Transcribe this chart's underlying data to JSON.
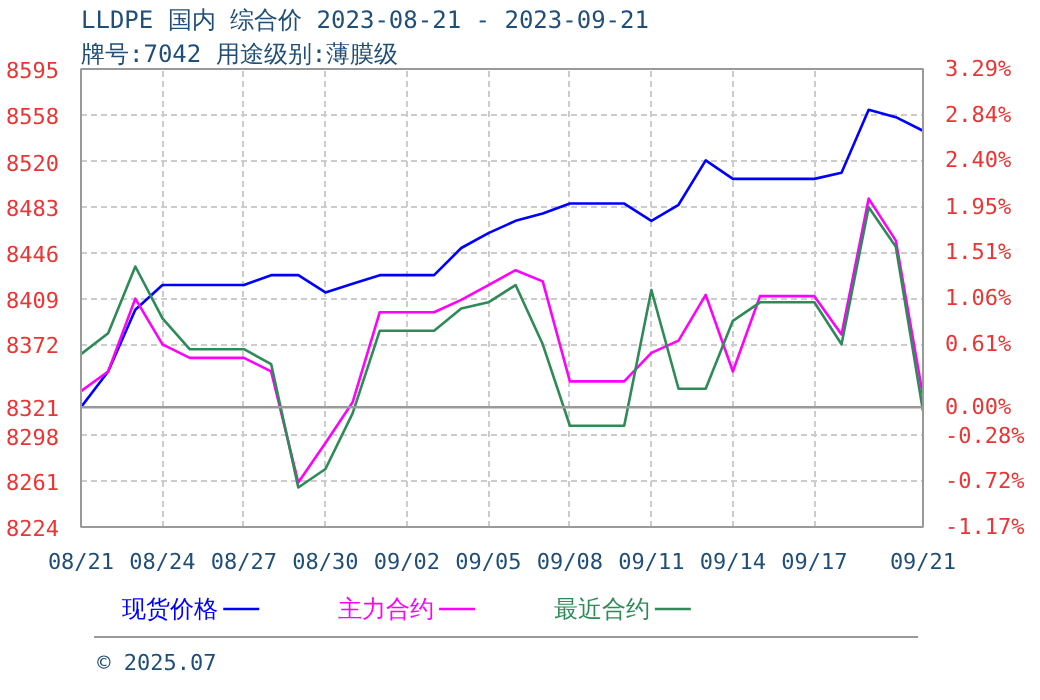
{
  "chart_data": {
    "type": "line",
    "title": "LLDPE 国内 综合价 2023-08-21 - 2023-09-21",
    "subtitle": "牌号:7042 用途级别:薄膜级",
    "x": [
      "2023-08-21",
      "2023-08-22",
      "2023-08-23",
      "2023-08-24",
      "2023-08-25",
      "2023-08-26",
      "2023-08-27",
      "2023-08-28",
      "2023-08-29",
      "2023-08-30",
      "2023-08-31",
      "2023-09-01",
      "2023-09-02",
      "2023-09-03",
      "2023-09-04",
      "2023-09-05",
      "2023-09-06",
      "2023-09-07",
      "2023-09-08",
      "2023-09-09",
      "2023-09-10",
      "2023-09-11",
      "2023-09-12",
      "2023-09-13",
      "2023-09-14",
      "2023-09-15",
      "2023-09-16",
      "2023-09-17",
      "2023-09-18",
      "2023-09-19",
      "2023-09-20",
      "2023-09-21"
    ],
    "series": [
      {
        "name": "现货价格",
        "color": "#0000ff",
        "values": [
          8321,
          8350,
          8400,
          8420,
          8420,
          8420,
          8420,
          8428,
          8428,
          8414,
          8421,
          8428,
          8428,
          8428,
          8450,
          8462,
          8472,
          8478,
          8486,
          8486,
          8486,
          8472,
          8485,
          8521,
          8506,
          8506,
          8506,
          8506,
          8511,
          8562,
          8556,
          8545
        ]
      },
      {
        "name": "主力合约",
        "color": "#ff00ff",
        "values": [
          8334,
          8350,
          8409,
          8372,
          8361,
          8361,
          8361,
          8350,
          8260,
          8292,
          8325,
          8398,
          8398,
          8398,
          8408,
          8420,
          8432,
          8423,
          8342,
          8342,
          8342,
          8365,
          8375,
          8412,
          8350,
          8411,
          8411,
          8411,
          8380,
          8490,
          8456,
          8330
        ]
      },
      {
        "name": "最近合约",
        "color": "#2e8b57",
        "values": [
          8364,
          8381,
          8435,
          8393,
          8368,
          8368,
          8368,
          8356,
          8256,
          8271,
          8316,
          8383,
          8383,
          8383,
          8401,
          8406,
          8420,
          8372,
          8306,
          8306,
          8306,
          8416,
          8336,
          8336,
          8391,
          8406,
          8406,
          8406,
          8372,
          8483,
          8451,
          8318
        ]
      }
    ],
    "xlim": [
      "2023-08-21",
      "2023-09-21"
    ],
    "xticks": [
      {
        "value": "2023-08-21",
        "label": "08/21"
      },
      {
        "value": "2023-08-24",
        "label": "08/24"
      },
      {
        "value": "2023-08-27",
        "label": "08/27"
      },
      {
        "value": "2023-08-30",
        "label": "08/30"
      },
      {
        "value": "2023-09-02",
        "label": "09/02"
      },
      {
        "value": "2023-09-05",
        "label": "09/05"
      },
      {
        "value": "2023-09-08",
        "label": "09/08"
      },
      {
        "value": "2023-09-11",
        "label": "09/11"
      },
      {
        "value": "2023-09-14",
        "label": "09/14"
      },
      {
        "value": "2023-09-17",
        "label": "09/17"
      },
      {
        "value": "2023-09-21",
        "label": "09/21"
      }
    ],
    "ylim": [
      8224,
      8595
    ],
    "yticks": [
      8224,
      8261,
      8298,
      8321,
      8372,
      8409,
      8446,
      8483,
      8520,
      8558,
      8595
    ],
    "y2lim": [
      -1.17,
      3.29
    ],
    "y2ticks": [
      {
        "value": -1.17,
        "label": "-1.17%"
      },
      {
        "value": -0.72,
        "label": "-0.72%"
      },
      {
        "value": -0.28,
        "label": "-0.28%"
      },
      {
        "value": 0,
        "label": "0.00%"
      },
      {
        "value": 0.61,
        "label": "0.61%"
      },
      {
        "value": 1.06,
        "label": "1.06%"
      },
      {
        "value": 1.51,
        "label": "1.51%"
      },
      {
        "value": 1.95,
        "label": "1.95%"
      },
      {
        "value": 2.4,
        "label": "2.40%"
      },
      {
        "value": 2.84,
        "label": "2.84%"
      },
      {
        "value": 3.29,
        "label": "3.29%"
      }
    ],
    "ref_lines": [
      {
        "axis": "y",
        "value": 8321,
        "color": "#999999"
      }
    ],
    "grid": true,
    "legend": "bottom",
    "marker": "none",
    "line_style": "solid",
    "annotations": [
      "© 2025.07"
    ]
  }
}
